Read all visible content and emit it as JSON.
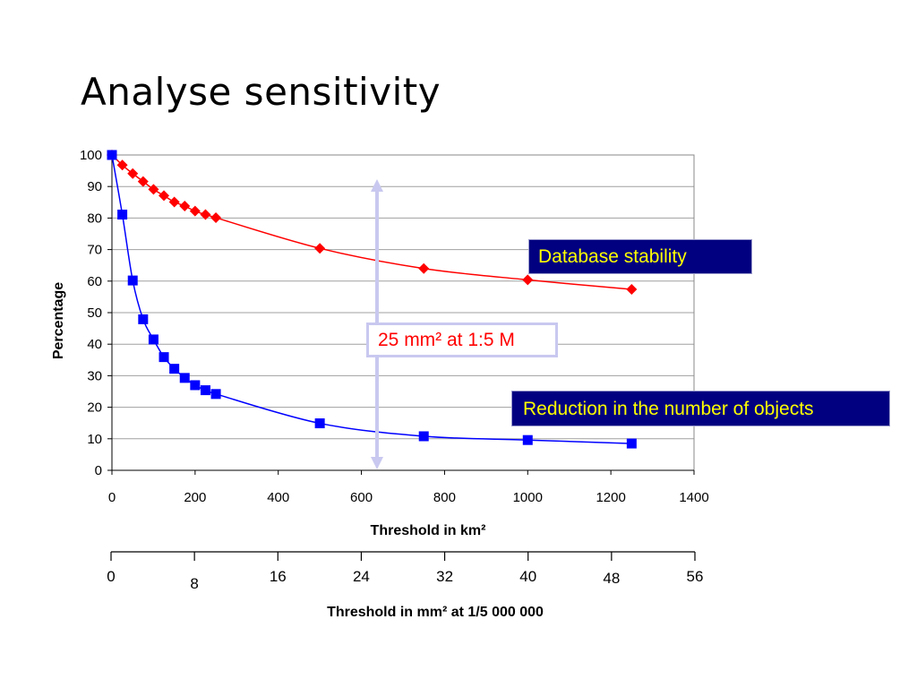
{
  "slide": {
    "title": "Analyse sensitivity"
  },
  "callouts": {
    "stability": "Database stability",
    "reduction": "Reduction in the number of objects",
    "scale": "25 mm² at 1:5 M"
  },
  "colors": {
    "stability_series": "#ff0000",
    "reduction_series": "#0000ff",
    "arrow": "#c8c8f0",
    "callout_bg": "#000080",
    "callout_text": "#ffff00",
    "scale_text": "#ff0000"
  },
  "chart_data": {
    "type": "line",
    "title": "",
    "xlabel": "Threshold in km²",
    "ylabel": "Percentage",
    "xlim": [
      0,
      1400
    ],
    "ylim": [
      0,
      100
    ],
    "x_ticks": [
      0,
      200,
      400,
      600,
      800,
      1000,
      1200,
      1400
    ],
    "y_ticks": [
      0,
      10,
      20,
      30,
      40,
      50,
      60,
      70,
      80,
      90,
      100
    ],
    "grid": "horizontal",
    "legend": "none",
    "series": [
      {
        "marker": "diamond",
        "points": [
          [
            0,
            100
          ],
          [
            25,
            96.8
          ],
          [
            50,
            94.1
          ],
          [
            75,
            91.6
          ],
          [
            100,
            89.1
          ],
          [
            125,
            87.1
          ],
          [
            150,
            85.1
          ],
          [
            175,
            83.8
          ],
          [
            200,
            82.2
          ],
          [
            225,
            81.1
          ],
          [
            250,
            80.1
          ],
          [
            500,
            70.4
          ],
          [
            750,
            64.0
          ],
          [
            1000,
            60.4
          ],
          [
            1250,
            57.4
          ]
        ]
      },
      {
        "marker": "square",
        "points": [
          [
            0,
            100
          ],
          [
            25,
            81.1
          ],
          [
            50,
            60.2
          ],
          [
            75,
            47.9
          ],
          [
            100,
            41.5
          ],
          [
            125,
            35.9
          ],
          [
            150,
            32.2
          ],
          [
            175,
            29.3
          ],
          [
            200,
            27.0
          ],
          [
            225,
            25.4
          ],
          [
            250,
            24.2
          ],
          [
            500,
            14.9
          ],
          [
            750,
            10.8
          ],
          [
            1000,
            9.6
          ],
          [
            1250,
            8.5
          ]
        ]
      }
    ],
    "secondary_axis": {
      "label": "Threshold in mm² at 1/5 000 000",
      "tick_labels": [
        "0",
        "8",
        "16",
        "24",
        "32",
        "40",
        "48",
        "56"
      ]
    }
  }
}
